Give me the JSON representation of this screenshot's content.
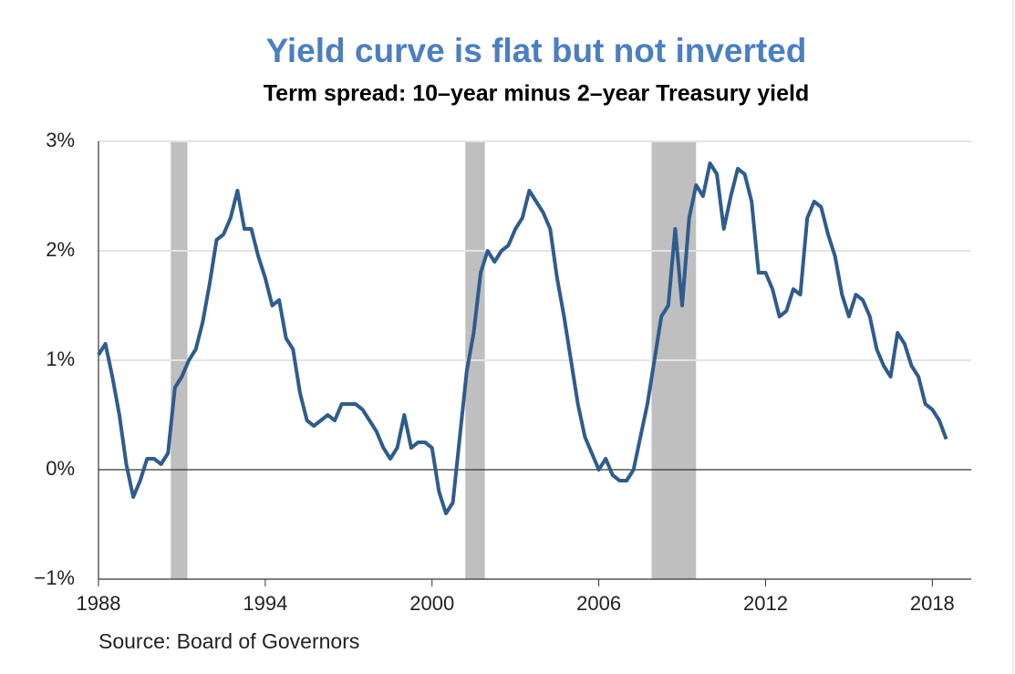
{
  "chart_data": {
    "type": "line",
    "title": "Yield curve is flat but not inverted",
    "subtitle": "Term spread: 10–year minus 2–year Treasury yield",
    "source": "Source: Board of Governors",
    "color": "#2e5c8e",
    "recession_color": "#bfbfbf",
    "recessions": [
      [
        1990.6,
        1991.2
      ],
      [
        2001.2,
        2001.9
      ],
      [
        2007.9,
        2009.5
      ]
    ],
    "x": [
      1988.0,
      1988.25,
      1988.5,
      1988.75,
      1989.0,
      1989.25,
      1989.5,
      1989.75,
      1990.0,
      1990.25,
      1990.5,
      1990.75,
      1991.0,
      1991.25,
      1991.5,
      1991.75,
      1992.0,
      1992.25,
      1992.5,
      1992.75,
      1993.0,
      1993.25,
      1993.5,
      1993.75,
      1994.0,
      1994.25,
      1994.5,
      1994.75,
      1995.0,
      1995.25,
      1995.5,
      1995.75,
      1996.0,
      1996.25,
      1996.5,
      1996.75,
      1997.0,
      1997.25,
      1997.5,
      1997.75,
      1998.0,
      1998.25,
      1998.5,
      1998.75,
      1999.0,
      1999.25,
      1999.5,
      1999.75,
      2000.0,
      2000.25,
      2000.5,
      2000.75,
      2001.0,
      2001.25,
      2001.5,
      2001.75,
      2002.0,
      2002.25,
      2002.5,
      2002.75,
      2003.0,
      2003.25,
      2003.5,
      2003.75,
      2004.0,
      2004.25,
      2004.5,
      2004.75,
      2005.0,
      2005.25,
      2005.5,
      2005.75,
      2006.0,
      2006.25,
      2006.5,
      2006.75,
      2007.0,
      2007.25,
      2007.5,
      2007.75,
      2008.0,
      2008.25,
      2008.5,
      2008.75,
      2009.0,
      2009.25,
      2009.5,
      2009.75,
      2010.0,
      2010.25,
      2010.5,
      2010.75,
      2011.0,
      2011.25,
      2011.5,
      2011.75,
      2012.0,
      2012.25,
      2012.5,
      2012.75,
      2013.0,
      2013.25,
      2013.5,
      2013.75,
      2014.0,
      2014.25,
      2014.5,
      2014.75,
      2015.0,
      2015.25,
      2015.5,
      2015.75,
      2016.0,
      2016.25,
      2016.5,
      2016.75,
      2017.0,
      2017.25,
      2017.5,
      2017.75,
      2018.0,
      2018.25,
      2018.5
    ],
    "values": [
      1.05,
      1.15,
      0.85,
      0.5,
      0.05,
      -0.25,
      -0.1,
      0.1,
      0.1,
      0.05,
      0.15,
      0.75,
      0.85,
      1.0,
      1.1,
      1.35,
      1.7,
      2.1,
      2.15,
      2.3,
      2.55,
      2.2,
      2.2,
      1.95,
      1.75,
      1.5,
      1.55,
      1.2,
      1.1,
      0.7,
      0.45,
      0.4,
      0.45,
      0.5,
      0.45,
      0.6,
      0.6,
      0.6,
      0.55,
      0.45,
      0.35,
      0.2,
      0.1,
      0.2,
      0.5,
      0.2,
      0.25,
      0.25,
      0.2,
      -0.2,
      -0.4,
      -0.3,
      0.3,
      0.9,
      1.25,
      1.8,
      2.0,
      1.9,
      2.0,
      2.05,
      2.2,
      2.3,
      2.55,
      2.45,
      2.35,
      2.2,
      1.75,
      1.4,
      1.0,
      0.6,
      0.3,
      0.15,
      0.0,
      0.1,
      -0.05,
      -0.1,
      -0.1,
      0.0,
      0.3,
      0.6,
      1.0,
      1.4,
      1.5,
      2.2,
      1.5,
      2.3,
      2.6,
      2.5,
      2.8,
      2.7,
      2.2,
      2.5,
      2.75,
      2.7,
      2.45,
      1.8,
      1.8,
      1.65,
      1.4,
      1.45,
      1.65,
      1.6,
      2.3,
      2.45,
      2.4,
      2.15,
      1.95,
      1.6,
      1.4,
      1.6,
      1.55,
      1.4,
      1.1,
      0.95,
      0.85,
      1.25,
      1.15,
      0.95,
      0.85,
      0.6,
      0.55,
      0.45,
      0.28
    ],
    "xlim": [
      1988,
      2019.4
    ],
    "xticks": [
      1988,
      1994,
      2000,
      2006,
      2012,
      2018
    ],
    "ylim": [
      -1,
      3
    ],
    "yticks": [
      {
        "value": -1,
        "label": "−1%"
      },
      {
        "value": 0,
        "label": "0%"
      },
      {
        "value": 1,
        "label": "1%"
      },
      {
        "value": 2,
        "label": "2%"
      },
      {
        "value": 3,
        "label": "3%"
      }
    ],
    "grid": true
  }
}
